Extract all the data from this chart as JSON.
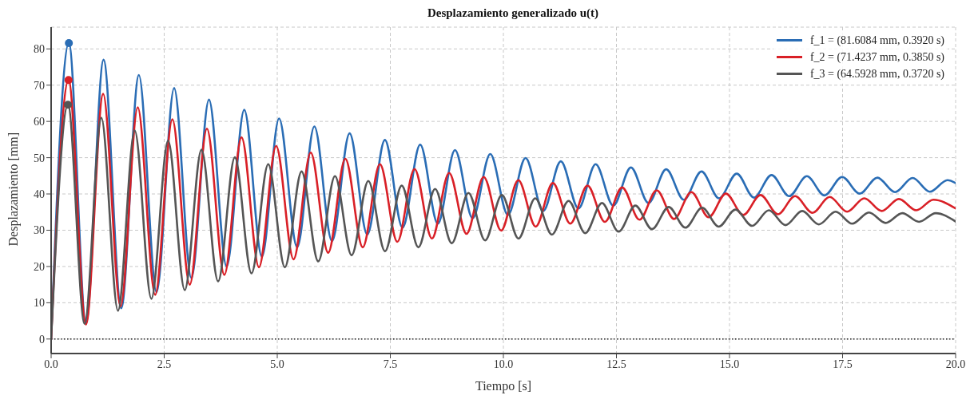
{
  "chart_data": {
    "type": "line",
    "title": "Desplazamiento generalizado u(t)",
    "xlabel": "Tiempo [s]",
    "ylabel": "Desplazamiento [mm]",
    "xlim": [
      0,
      20
    ],
    "xticks": [
      {
        "value": 0,
        "label": "0.0"
      },
      {
        "value": 2.5,
        "label": "2.5"
      },
      {
        "value": 5,
        "label": "5.0"
      },
      {
        "value": 7.5,
        "label": "7.5"
      },
      {
        "value": 10,
        "label": "10.0"
      },
      {
        "value": 12.5,
        "label": "12.5"
      },
      {
        "value": 15,
        "label": "15.0"
      },
      {
        "value": 17.5,
        "label": "17.5"
      },
      {
        "value": 20,
        "label": "20.0"
      }
    ],
    "ylim": [
      -4,
      86
    ],
    "yticks": [
      0,
      10,
      20,
      30,
      40,
      50,
      60,
      70,
      80
    ],
    "grid": true,
    "legend": "top right",
    "marker": "none",
    "line_style": "solid",
    "ref_lines": [
      {
        "axis": "y",
        "value": 0,
        "color": "#000000",
        "line_style": "dotted"
      }
    ],
    "series": [
      {
        "name": "f_1 = (81.6084 mm, 0.3920 s)",
        "color": "#2a6db5",
        "x": [
          0,
          0.392,
          0.77,
          1.16,
          1.55,
          1.94,
          2.33,
          2.72,
          3.1,
          3.49,
          3.88,
          4.27,
          4.66,
          5.04,
          5.44,
          5.82,
          6.21,
          6.6,
          6.99,
          7.38,
          7.77,
          8.16,
          8.55,
          8.93,
          9.32,
          9.71,
          10.1,
          10.49,
          10.88,
          11.27,
          11.66,
          12.04,
          12.43,
          12.82,
          13.21,
          13.6,
          13.99,
          14.38,
          14.77,
          15.16,
          15.54,
          15.93,
          16.32,
          16.71,
          17.1,
          17.49,
          17.88,
          18.27,
          18.66,
          19.05,
          19.43,
          19.82,
          20
        ],
        "values": [
          0,
          81.6,
          4.5,
          77,
          8.5,
          72.8,
          12.9,
          69.2,
          16.8,
          66,
          20,
          63.2,
          22.7,
          60.8,
          25.3,
          58.6,
          27,
          56.7,
          28.8,
          54.9,
          30.7,
          53.6,
          31.8,
          52.1,
          33.3,
          51,
          34.2,
          49.9,
          35.3,
          49,
          36,
          48.2,
          36.8,
          47.3,
          37.5,
          46.8,
          38.4,
          46.2,
          38.8,
          45.6,
          39,
          45.2,
          39.4,
          44.9,
          39.6,
          44.7,
          40.1,
          44.5,
          40.5,
          44.4,
          40.6,
          43.8,
          43
        ]
      },
      {
        "name": "f_2 = (71.4237 mm, 0.3850 s)",
        "color": "#d92027",
        "x": [
          0,
          0.385,
          0.77,
          1.15,
          1.535,
          1.915,
          2.3,
          2.68,
          3.065,
          3.445,
          3.83,
          4.21,
          4.595,
          4.975,
          5.36,
          5.74,
          6.125,
          6.505,
          6.89,
          7.27,
          7.655,
          8.035,
          8.42,
          8.8,
          9.185,
          9.565,
          9.95,
          10.33,
          10.715,
          11.095,
          11.48,
          11.86,
          12.245,
          12.625,
          13.01,
          13.39,
          13.775,
          14.155,
          14.54,
          14.92,
          15.305,
          15.685,
          16.07,
          16.45,
          16.835,
          17.215,
          17.6,
          17.98,
          18.365,
          18.745,
          19.13,
          19.51,
          20
        ],
        "values": [
          0,
          71.4,
          4,
          67.6,
          9,
          63.9,
          12.2,
          60.6,
          15,
          58,
          17.7,
          55.6,
          19.8,
          53.2,
          22,
          51.4,
          23.8,
          49.7,
          25.3,
          48.2,
          26.8,
          46.9,
          27.7,
          45.8,
          29,
          44.7,
          29.9,
          43.8,
          31,
          43,
          31.8,
          42.3,
          32.3,
          41.8,
          32.9,
          41,
          33.1,
          40.5,
          33.6,
          40.1,
          34.2,
          39.7,
          34.4,
          39.4,
          34.8,
          39.2,
          35.1,
          38.8,
          35.3,
          38.6,
          35.5,
          38.4,
          36
        ]
      },
      {
        "name": "f_3 = (64.5928 mm, 0.3720 s)",
        "color": "#555555",
        "x": [
          0,
          0.372,
          0.74,
          1.11,
          1.478,
          1.848,
          2.216,
          2.586,
          2.954,
          3.324,
          3.692,
          4.062,
          4.43,
          4.8,
          5.168,
          5.538,
          5.906,
          6.276,
          6.644,
          7.014,
          7.382,
          7.752,
          8.12,
          8.49,
          8.858,
          9.228,
          9.596,
          9.966,
          10.334,
          10.704,
          11.072,
          11.442,
          11.81,
          12.18,
          12.548,
          12.918,
          13.286,
          13.656,
          14.024,
          14.394,
          14.762,
          15.132,
          15.5,
          15.87,
          16.238,
          16.608,
          16.976,
          17.346,
          17.714,
          18.084,
          18.452,
          18.822,
          19.19,
          19.56,
          20
        ],
        "values": [
          0,
          64.6,
          4.2,
          61,
          7.8,
          57.5,
          11.1,
          54.7,
          13.5,
          52.2,
          15.9,
          50.1,
          18.1,
          48.2,
          19.8,
          46.2,
          21.4,
          44.9,
          23.1,
          43.6,
          24.2,
          42.3,
          25.3,
          41.4,
          26.4,
          40.3,
          27.2,
          39.7,
          27.7,
          38.8,
          28.8,
          38.1,
          29.2,
          37.5,
          29.6,
          36.8,
          30.3,
          36.4,
          30.7,
          36.2,
          31,
          35.7,
          31.2,
          35.5,
          31.4,
          35.3,
          31.6,
          35.1,
          31.8,
          34.9,
          32,
          34.7,
          32.3,
          34.7,
          32.4
        ]
      },
      {
        "type": "scatter",
        "marker": "circle",
        "x": [
          0.392,
          0.385,
          0.372
        ],
        "values": [
          81.6,
          71.4,
          64.6
        ],
        "colors": [
          "#2a6db5",
          "#d92027",
          "#555555"
        ]
      }
    ]
  }
}
